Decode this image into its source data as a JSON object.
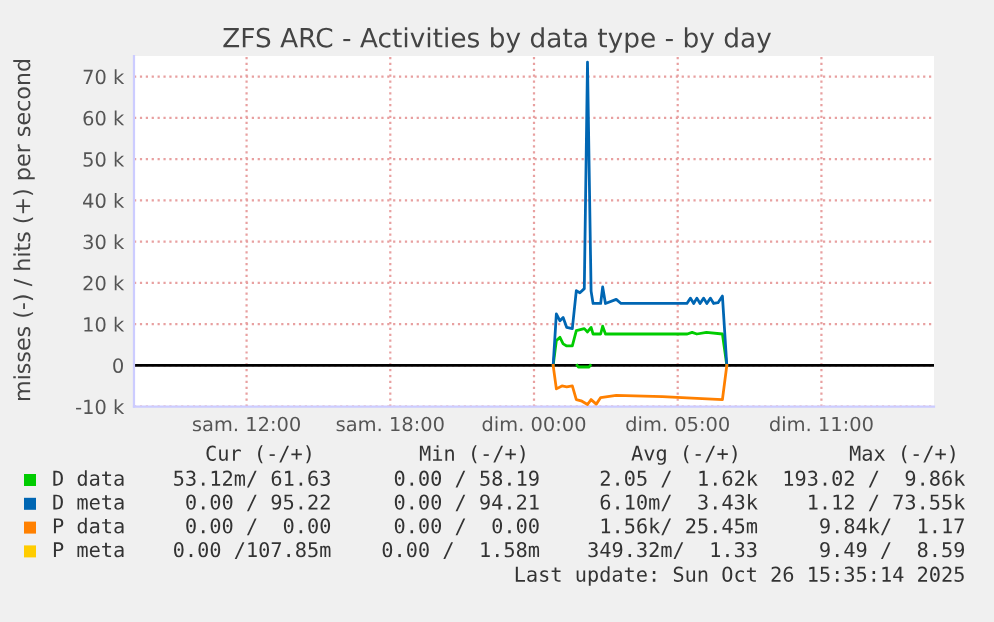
{
  "chart_data": {
    "type": "line",
    "title": "ZFS ARC - Activities by data type - by day",
    "ylabel": "misses (-) / hits (+) per second",
    "xlim": [
      "2025-10-25T05:18",
      "2025-10-26T14:42"
    ],
    "xticks": [
      {
        "value": "2025-10-25T10:00",
        "label": "sam. 12:00"
      },
      {
        "value": "2025-10-25T16:00",
        "label": "sam. 18:00"
      },
      {
        "value": "2025-10-25T22:00",
        "label": "dim. 00:00"
      },
      {
        "value": "2025-10-26T04:00",
        "label": "dim. 05:00"
      },
      {
        "value": "2025-10-26T10:00",
        "label": "dim. 11:00"
      }
    ],
    "ylim": [
      -10000,
      75000
    ],
    "yticks": [
      {
        "value": -10000,
        "label": "-10 k"
      },
      0,
      {
        "value": 10000,
        "label": "10 k"
      },
      {
        "value": 20000,
        "label": "20 k"
      },
      {
        "value": 30000,
        "label": "30 k"
      },
      {
        "value": 40000,
        "label": "40 k"
      },
      {
        "value": 50000,
        "label": "50 k"
      },
      {
        "value": 60000,
        "label": "60 k"
      },
      {
        "value": 70000,
        "label": "70 k"
      }
    ],
    "grid": true,
    "legend": "bottom",
    "ref_lines": [
      {
        "axis": "y",
        "value": 0,
        "color": "#000000"
      }
    ],
    "series": [
      {
        "name": "D data",
        "color": "#00cc00",
        "x": [
          "2025-10-25T22:48",
          "2025-10-25T22:56",
          "2025-10-25T23:05",
          "2025-10-25T23:13",
          "2025-10-25T23:22",
          "2025-10-25T23:36",
          "2025-10-25T23:46",
          "2025-10-26T00:06",
          "2025-10-26T00:14",
          "2025-10-26T00:23",
          "2025-10-26T00:28",
          "2025-10-26T00:47",
          "2025-10-26T00:52",
          "2025-10-26T00:59",
          "2025-10-26T04:24",
          "2025-10-26T04:36",
          "2025-10-26T04:48",
          "2025-10-26T05:12",
          "2025-10-26T05:52",
          "2025-10-26T06:03"
        ],
        "values": [
          0,
          6000,
          6800,
          5200,
          4700,
          4700,
          8400,
          8900,
          8100,
          9200,
          7600,
          7600,
          9500,
          7600,
          7600,
          8000,
          7600,
          8000,
          7600,
          0
        ]
      },
      {
        "name": "D meta",
        "color": "#0066b3",
        "x": [
          "2025-10-25T22:48",
          "2025-10-25T22:56",
          "2025-10-25T23:05",
          "2025-10-25T23:13",
          "2025-10-25T23:22",
          "2025-10-25T23:36",
          "2025-10-25T23:46",
          "2025-10-25T23:55",
          "2025-10-26T00:06",
          "2025-10-26T00:14",
          "2025-10-26T00:23",
          "2025-10-26T00:28",
          "2025-10-26T00:47",
          "2025-10-26T00:52",
          "2025-10-26T00:59",
          "2025-10-26T01:26",
          "2025-10-26T01:38",
          "2025-10-26T04:23",
          "2025-10-26T04:32",
          "2025-10-26T04:40",
          "2025-10-26T04:48",
          "2025-10-26T04:56",
          "2025-10-26T05:05",
          "2025-10-26T05:13",
          "2025-10-26T05:22",
          "2025-10-26T05:30",
          "2025-10-26T05:41",
          "2025-10-26T05:52",
          "2025-10-26T06:03"
        ],
        "values": [
          0,
          12500,
          10800,
          11600,
          9200,
          8900,
          18100,
          17600,
          18600,
          73500,
          18000,
          15000,
          15000,
          19000,
          15000,
          16000,
          15000,
          15000,
          16300,
          15000,
          16300,
          15000,
          16300,
          15000,
          16300,
          15000,
          15200,
          16800,
          0
        ]
      },
      {
        "name": "P data",
        "color": "#ff8000",
        "x": [
          "2025-10-25T22:48",
          "2025-10-25T22:56",
          "2025-10-25T23:10",
          "2025-10-25T23:22",
          "2025-10-25T23:36",
          "2025-10-25T23:46",
          "2025-10-25T23:58",
          "2025-10-26T00:14",
          "2025-10-26T00:23",
          "2025-10-26T00:36",
          "2025-10-26T00:47",
          "2025-10-26T01:26",
          "2025-10-26T03:22",
          "2025-10-26T04:23",
          "2025-10-26T05:52",
          "2025-10-26T06:03"
        ],
        "values": [
          0,
          -5700,
          -5000,
          -5200,
          -5000,
          -8300,
          -8600,
          -9500,
          -8300,
          -9400,
          -7800,
          -7300,
          -7600,
          -7900,
          -8300,
          0
        ]
      },
      {
        "name": "P meta",
        "color": "#ffcc00"
      },
      {
        "color": "#00cc00",
        "x": [
          "2025-10-25T23:48",
          "2025-10-25T23:51",
          "2025-10-26T00:18",
          "2025-10-26T00:21"
        ],
        "values": [
          0,
          -400,
          -400,
          0
        ]
      }
    ],
    "annotations": [
      "Cur (-/+)",
      "Min (-/+)",
      "Avg (-/+)",
      "Max (-/+)",
      "53.12m/ 61.63",
      "0.00 / 58.19",
      "2.05 /  1.62k",
      "193.02 /  9.86k",
      "0.00 / 95.22",
      "0.00 / 94.21",
      "6.10m/  3.43k",
      "1.12 / 73.55k",
      "0.00 /  0.00",
      "0.00 /  0.00",
      "1.56k/ 25.45m",
      "9.84k/  1.17",
      "0.00 /107.85m",
      "0.00 /  1.58m",
      "349.32m/  1.33",
      "9.49 /  8.59",
      "Last update: Sun Oct 26 15:35:14 2025"
    ]
  }
}
